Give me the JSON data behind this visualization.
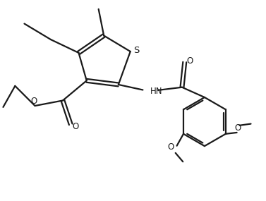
{
  "background_color": "#ffffff",
  "line_color": "#1a1a1a",
  "line_width": 1.6,
  "font_size": 8.5,
  "figsize": [
    3.77,
    2.85
  ],
  "dpi": 100,
  "xlim": [
    0,
    10
  ],
  "ylim": [
    0,
    7.5
  ]
}
